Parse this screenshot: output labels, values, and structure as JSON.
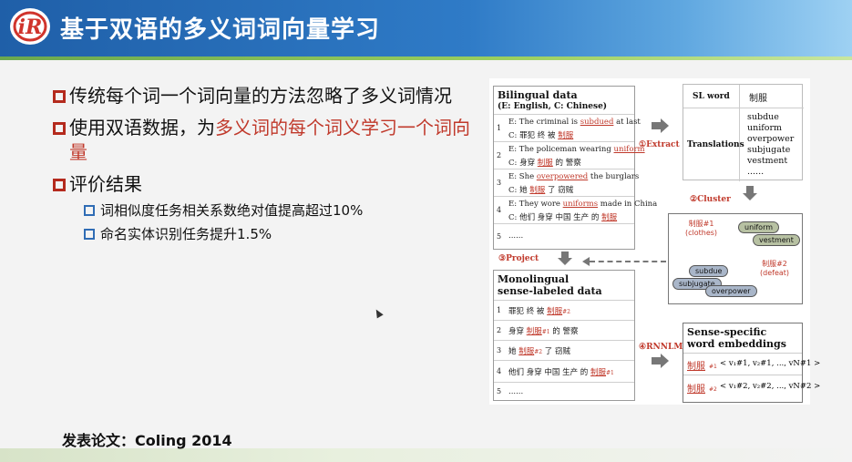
{
  "slide": {
    "title": "基于双语的多义词词向量学习",
    "publication": "发表论文：Coling 2014",
    "bullets": [
      {
        "text": "传统每个词一个词向量的方法忽略了多义词情况"
      },
      {
        "text_before": "使用双语数据，为",
        "text_highlight": "多义词的每个词义学习一个词向量"
      },
      {
        "text": "评价结果",
        "sub": [
          "词相似度任务相关系数绝对值提高超过10%",
          "命名实体识别任务提升1.5%"
        ]
      }
    ]
  },
  "figure": {
    "bilingual": {
      "title": "Bilingual data",
      "subtitle": "(E: English, C: Chinese)",
      "rows": [
        {
          "n": "1",
          "e_pre": "E: The criminal is ",
          "e_key": "subdued",
          "e_post": " at last",
          "c_pre": "C: 罪犯 终 被 ",
          "c_key": "制服",
          "c_post": ""
        },
        {
          "n": "2",
          "e_pre": "E: The policeman wearing ",
          "e_key": "uniform",
          "e_post": "",
          "c_pre": "C: 身穿 ",
          "c_key": "制服",
          "c_post": " 的 警察"
        },
        {
          "n": "3",
          "e_pre": "E: She ",
          "e_key": "overpowered",
          "e_post": " the burglars",
          "c_pre": "C: 她 ",
          "c_key": "制服",
          "c_post": " 了 窃贼"
        },
        {
          "n": "4",
          "e_pre": "E: They wore ",
          "e_key": "uniforms",
          "e_post": " made in China",
          "c_pre": "C: 他们 身穿 中国 生产 的 ",
          "c_key": "制服",
          "c_post": ""
        },
        {
          "n": "5",
          "dots": "......"
        }
      ]
    },
    "extract": {
      "step": "①Extract",
      "sl_word_label": "SL word",
      "sl_word_value": "制服",
      "translations_label": "Translations",
      "translations": [
        "subdue",
        "uniform",
        "overpower",
        "subjugate",
        "vestment",
        "......"
      ]
    },
    "cluster": {
      "step": "②Cluster",
      "sense1_label": "制服#1",
      "sense1_gloss": "(clothes)",
      "sense2_label": "制服#2",
      "sense2_gloss": "(defeat)",
      "pills": [
        "uniform",
        "vestment",
        "subdue",
        "subjugate",
        "overpower"
      ]
    },
    "project": {
      "step": "③Project"
    },
    "mono": {
      "title1": "Monolingual",
      "title2": "sense-labeled data",
      "rows": [
        {
          "n": "1",
          "pre": "罪犯 终 被 ",
          "key": "制服",
          "sub": "#2",
          "post": ""
        },
        {
          "n": "2",
          "pre": "身穿 ",
          "key": "制服",
          "sub": "#1",
          "post": " 的 警察"
        },
        {
          "n": "3",
          "pre": "她 ",
          "key": "制服",
          "sub": "#2",
          "post": " 了 窃贼"
        },
        {
          "n": "4",
          "pre": "他们 身穿 中国 生产 的 ",
          "key": "制服",
          "sub": "#1",
          "post": ""
        },
        {
          "n": "5",
          "dots": "......"
        }
      ]
    },
    "rnnlm": {
      "step": "④RNNLM"
    },
    "embeddings": {
      "title1": "Sense-specific",
      "title2": "word embeddings",
      "rows": [
        {
          "word": "制服",
          "sub": "#1",
          "vec": "< v₁#1, v₂#1, ..., vN#1 >"
        },
        {
          "word": "制服",
          "sub": "#2",
          "vec": "< v₁#2, v₂#2, ..., vN#2 >"
        }
      ]
    }
  }
}
